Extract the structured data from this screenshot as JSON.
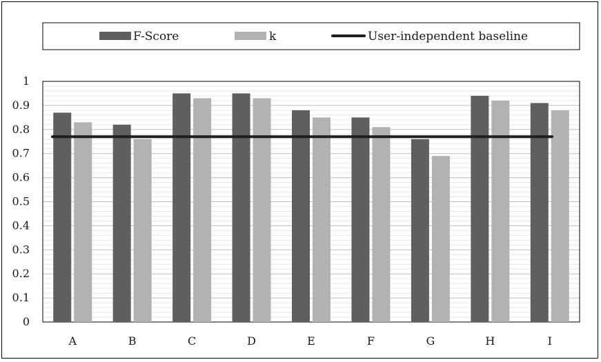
{
  "chart_data": {
    "type": "bar",
    "categories": [
      "A",
      "B",
      "C",
      "D",
      "E",
      "F",
      "G",
      "H",
      "I"
    ],
    "series": [
      {
        "name": "F-Score",
        "color": "#5f5f5f",
        "values": [
          0.87,
          0.82,
          0.95,
          0.95,
          0.88,
          0.85,
          0.76,
          0.94,
          0.91
        ]
      },
      {
        "name": "k",
        "color": "#b2b2b2",
        "values": [
          0.83,
          0.76,
          0.93,
          0.93,
          0.85,
          0.81,
          0.69,
          0.92,
          0.88
        ]
      }
    ],
    "baseline": {
      "name": "User-independent baseline",
      "value": 0.77,
      "color": "#1f1f1f"
    },
    "ylim": [
      0,
      1
    ],
    "yticks": [
      "0",
      "0.1",
      "0.2",
      "0.3",
      "0.4",
      "0.5",
      "0.6",
      "0.7",
      "0.8",
      "0.9",
      "1"
    ],
    "grid": true,
    "legend_position": "top",
    "title": "",
    "xlabel": "",
    "ylabel": ""
  }
}
